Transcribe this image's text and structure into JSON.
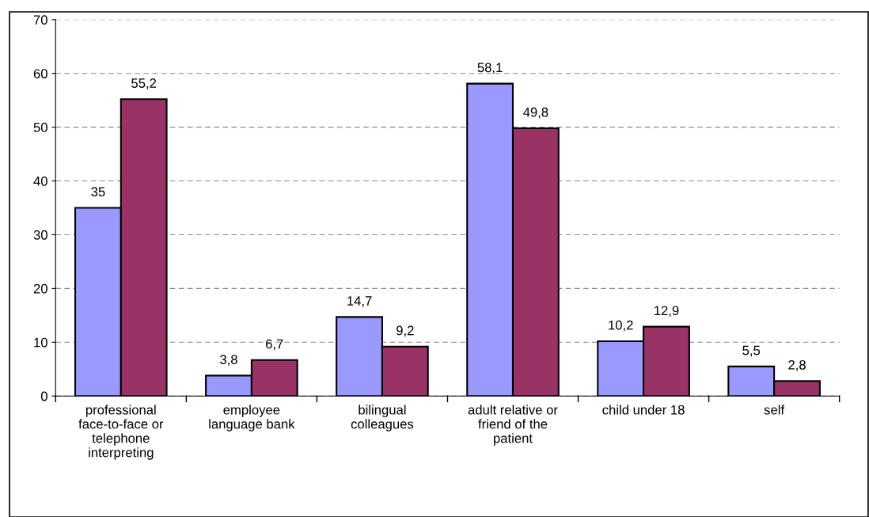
{
  "chart_data": {
    "type": "bar",
    "categories": [
      "professional\nface-to-face or\ntelephone\ninterpreting",
      "employee\nlanguage bank",
      "bilingual\ncolleagues",
      "adult relative or\nfriend of the\npatient",
      "child under 18",
      "self"
    ],
    "series": [
      {
        "color": "#9999ff",
        "values": [
          35,
          3.8,
          14.7,
          58.1,
          10.2,
          5.5
        ],
        "value_labels": [
          "35",
          "3,8",
          "14,7",
          "58,1",
          "10,2",
          "5,5"
        ]
      },
      {
        "color": "#993366",
        "values": [
          55.2,
          6.7,
          9.2,
          49.8,
          12.9,
          2.8
        ],
        "value_labels": [
          "55,2",
          "6,7",
          "9,2",
          "49,8",
          "12,9",
          "2,8"
        ]
      }
    ],
    "ylim": [
      0,
      70
    ],
    "yticks": [
      0,
      10,
      20,
      30,
      40,
      50,
      60,
      70
    ],
    "grid": "y",
    "legend": false
  }
}
